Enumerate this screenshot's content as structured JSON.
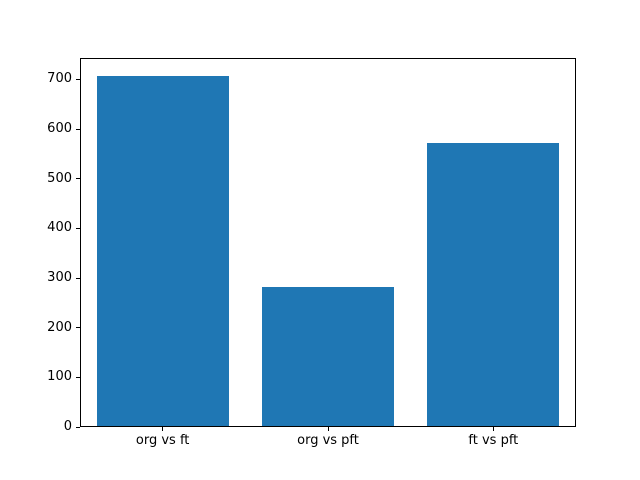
{
  "figure": {
    "background_color": "#ffffff",
    "spine_color": "#000000",
    "text_color": "#000000"
  },
  "chart_data": {
    "type": "bar",
    "title": "",
    "xlabel": "",
    "ylabel": "",
    "categories": [
      "org vs ft",
      "org vs pft",
      "ft vs pft"
    ],
    "values": [
      707,
      282,
      572
    ],
    "ylim": [
      0,
      743
    ],
    "yticks": [
      0,
      100,
      200,
      300,
      400,
      500,
      600,
      700
    ],
    "ytick_labels": [
      "0",
      "100",
      "200",
      "300",
      "400",
      "500",
      "600",
      "700"
    ],
    "bar_color": "#1f77b4",
    "bar_width_fraction": 0.8,
    "grid": false,
    "legend": null
  }
}
